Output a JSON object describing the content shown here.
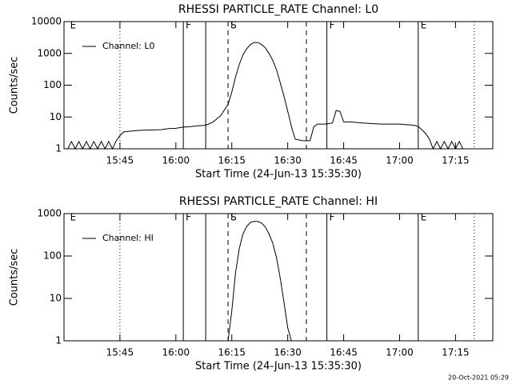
{
  "chart_data": [
    {
      "type": "line",
      "title": "RHESSI PARTICLE_RATE Channel: L0",
      "x_label": "Start Time (24-Jun-13 15:35:30)",
      "y_label": "Counts/sec",
      "log_y": true,
      "xlim": [
        "15:30",
        "17:25"
      ],
      "ylim": [
        1,
        10000
      ],
      "xticks": [
        "15:45",
        "16:00",
        "16:15",
        "16:30",
        "16:45",
        "17:00",
        "17:15"
      ],
      "yticks": [
        1,
        10,
        100,
        1000,
        10000
      ],
      "markers": [
        {
          "x": "15:45",
          "style": "dotted"
        },
        {
          "x": "16:02",
          "style": "solid"
        },
        {
          "x": "16:08",
          "style": "solid"
        },
        {
          "x": "16:14",
          "style": "dashed"
        },
        {
          "x": "16:35",
          "style": "dashed"
        },
        {
          "x": "16:40:30",
          "style": "solid"
        },
        {
          "x": "17:05",
          "style": "solid"
        },
        {
          "x": "17:20",
          "style": "dotted"
        }
      ],
      "annotations": [
        {
          "x": "15:31",
          "text": "E"
        },
        {
          "x": "16:02",
          "text": "F"
        },
        {
          "x": "16:14",
          "text": "S"
        },
        {
          "x": "16:40:30",
          "text": "F"
        },
        {
          "x": "17:05",
          "text": "E"
        }
      ],
      "x": [
        "15:31",
        "15:32",
        "15:33",
        "15:34",
        "15:35",
        "15:36",
        "15:37",
        "15:38",
        "15:39",
        "15:40",
        "15:41",
        "15:42",
        "15:43",
        "15:44",
        "15:45",
        "15:46",
        "15:48",
        "15:50",
        "15:53",
        "15:56",
        "15:58",
        "16:00",
        "16:02",
        "16:04",
        "16:06",
        "16:08",
        "16:10",
        "16:12",
        "16:14",
        "16:15",
        "16:16",
        "16:17",
        "16:18",
        "16:19",
        "16:20",
        "16:21",
        "16:22",
        "16:23",
        "16:24",
        "16:25",
        "16:26",
        "16:27",
        "16:28",
        "16:29",
        "16:30",
        "16:31",
        "16:32",
        "16:34",
        "16:36",
        "16:37",
        "16:38",
        "16:40",
        "16:42",
        "16:43",
        "16:44",
        "16:45",
        "16:47",
        "16:50",
        "16:55",
        "17:00",
        "17:04",
        "17:05",
        "17:06",
        "17:07",
        "17:08",
        "17:09",
        "17:10",
        "17:11",
        "17:12",
        "17:13",
        "17:14",
        "17:15",
        "17:16",
        "17:17"
      ],
      "series": [
        {
          "name": "Channel: L0",
          "color": "#000000",
          "values": [
            1,
            1.7,
            1,
            1.7,
            1,
            1.7,
            1,
            1.7,
            1,
            1.7,
            1,
            1.7,
            1,
            1.8,
            2.6,
            3.4,
            3.6,
            3.8,
            3.9,
            4,
            4.3,
            4.4,
            4.8,
            5,
            5.3,
            5.5,
            7,
            11,
            25,
            60,
            180,
            450,
            900,
            1400,
            1900,
            2200,
            2200,
            1900,
            1500,
            1000,
            600,
            300,
            120,
            45,
            15,
            5,
            2,
            1.8,
            1.8,
            5,
            6,
            6,
            6.5,
            16,
            15,
            7,
            7,
            6.5,
            6,
            6,
            5.5,
            5,
            4,
            3,
            2,
            1,
            1.7,
            1,
            1.7,
            1,
            1.7,
            1,
            1.7,
            1
          ]
        }
      ]
    },
    {
      "type": "line",
      "title": "RHESSI PARTICLE_RATE Channel: HI",
      "x_label": "Start Time (24-Jun-13 15:35:30)",
      "y_label": "Counts/sec",
      "log_y": true,
      "xlim": [
        "15:30",
        "17:25"
      ],
      "ylim": [
        1,
        1000
      ],
      "xticks": [
        "15:45",
        "16:00",
        "16:15",
        "16:30",
        "16:45",
        "17:00",
        "17:15"
      ],
      "yticks": [
        1,
        10,
        100,
        1000
      ],
      "markers": [
        {
          "x": "15:45",
          "style": "dotted"
        },
        {
          "x": "16:02",
          "style": "solid"
        },
        {
          "x": "16:08",
          "style": "solid"
        },
        {
          "x": "16:14",
          "style": "dashed"
        },
        {
          "x": "16:35",
          "style": "dashed"
        },
        {
          "x": "16:40:30",
          "style": "solid"
        },
        {
          "x": "17:05",
          "style": "solid"
        },
        {
          "x": "17:20",
          "style": "dotted"
        }
      ],
      "annotations": [
        {
          "x": "15:31",
          "text": "E"
        },
        {
          "x": "16:02",
          "text": "F"
        },
        {
          "x": "16:14",
          "text": "S"
        },
        {
          "x": "16:40:30",
          "text": "F"
        },
        {
          "x": "17:05",
          "text": "E"
        }
      ],
      "x": [
        "16:14",
        "16:15",
        "16:16",
        "16:17",
        "16:18",
        "16:19",
        "16:20",
        "16:21",
        "16:22",
        "16:23",
        "16:24",
        "16:25",
        "16:26",
        "16:27",
        "16:28",
        "16:29",
        "16:30",
        "16:31"
      ],
      "series": [
        {
          "name": "Channel: HI",
          "color": "#000000",
          "values": [
            1,
            5,
            40,
            150,
            330,
            500,
            620,
            660,
            650,
            600,
            480,
            330,
            200,
            90,
            30,
            8,
            2,
            1
          ]
        }
      ]
    }
  ],
  "footer": "20-Oct-2021 05:29"
}
